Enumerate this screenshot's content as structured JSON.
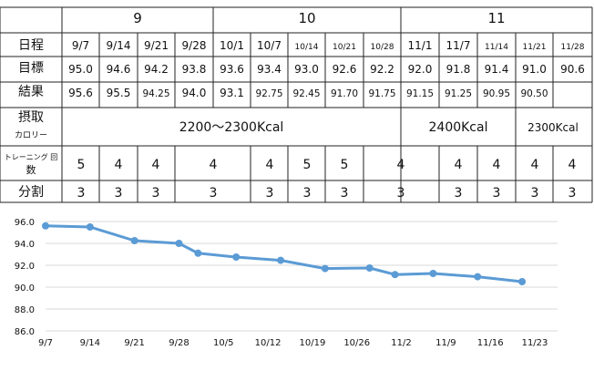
{
  "table": {
    "months": [
      {
        "label": "9"
      },
      {
        "label": "10"
      },
      {
        "label": "11"
      }
    ],
    "row_labels": {
      "dates": "日程",
      "target": "目標",
      "result": "結果",
      "intake_line1": "摂取",
      "intake_line2": "カロリー",
      "training_line1": "トレーニング 回",
      "training_line2": "数",
      "split": "分割"
    },
    "dates": [
      "9/7",
      "9/14",
      "9/21",
      "9/28",
      "10/1",
      "10/7",
      "10/14",
      "10/21",
      "10/28",
      "11/1",
      "11/7",
      "11/14",
      "11/21",
      "11/28"
    ],
    "targets": [
      "95.0",
      "94.6",
      "94.2",
      "93.8",
      "93.6",
      "93.4",
      "93.0",
      "92.6",
      "92.2",
      "92.0",
      "91.8",
      "91.4",
      "91.0",
      "90.6"
    ],
    "results": [
      "95.6",
      "95.5",
      "94.25",
      "94.0",
      "93.1",
      "92.75",
      "92.45",
      "91.70",
      "91.75",
      "91.15",
      "91.25",
      "90.95",
      "90.50",
      ""
    ],
    "intake": [
      "2200～2300Kcal",
      "2400Kcal",
      "2300Kcal"
    ],
    "training": [
      "5",
      "4",
      "4",
      "4",
      "4",
      "5",
      "5",
      "4",
      "4",
      "4",
      "4",
      "4"
    ],
    "split": [
      "3",
      "3",
      "3",
      "3",
      "3",
      "3",
      "3",
      "3",
      "3",
      "3",
      "3",
      "3"
    ]
  },
  "chart_data": {
    "type": "line",
    "title": "",
    "xlabel": "",
    "ylabel": "",
    "x_ticks": [
      "9/7",
      "9/14",
      "9/21",
      "9/28",
      "10/5",
      "10/12",
      "10/19",
      "10/26",
      "11/2",
      "11/9",
      "11/16",
      "11/23"
    ],
    "y_ticks": [
      "96.0",
      "94.0",
      "92.0",
      "90.0",
      "88.0",
      "86.0"
    ],
    "ylim": [
      86.0,
      96.0
    ],
    "xlim": [
      "9/7",
      "11/23"
    ],
    "grid": "horizontal",
    "color": "#5B9BD5",
    "series": [
      {
        "points": [
          {
            "x": "9/7",
            "y": 95.6
          },
          {
            "x": "9/14",
            "y": 95.5
          },
          {
            "x": "9/21",
            "y": 94.25
          },
          {
            "x": "9/28",
            "y": 94.0
          },
          {
            "x": "10/1",
            "y": 93.1
          },
          {
            "x": "10/7",
            "y": 92.75
          },
          {
            "x": "10/14",
            "y": 92.45
          },
          {
            "x": "10/21",
            "y": 91.7
          },
          {
            "x": "10/28",
            "y": 91.75
          },
          {
            "x": "11/1",
            "y": 91.15
          },
          {
            "x": "11/7",
            "y": 91.25
          },
          {
            "x": "11/14",
            "y": 90.95
          },
          {
            "x": "11/21",
            "y": 90.5
          }
        ]
      }
    ]
  }
}
